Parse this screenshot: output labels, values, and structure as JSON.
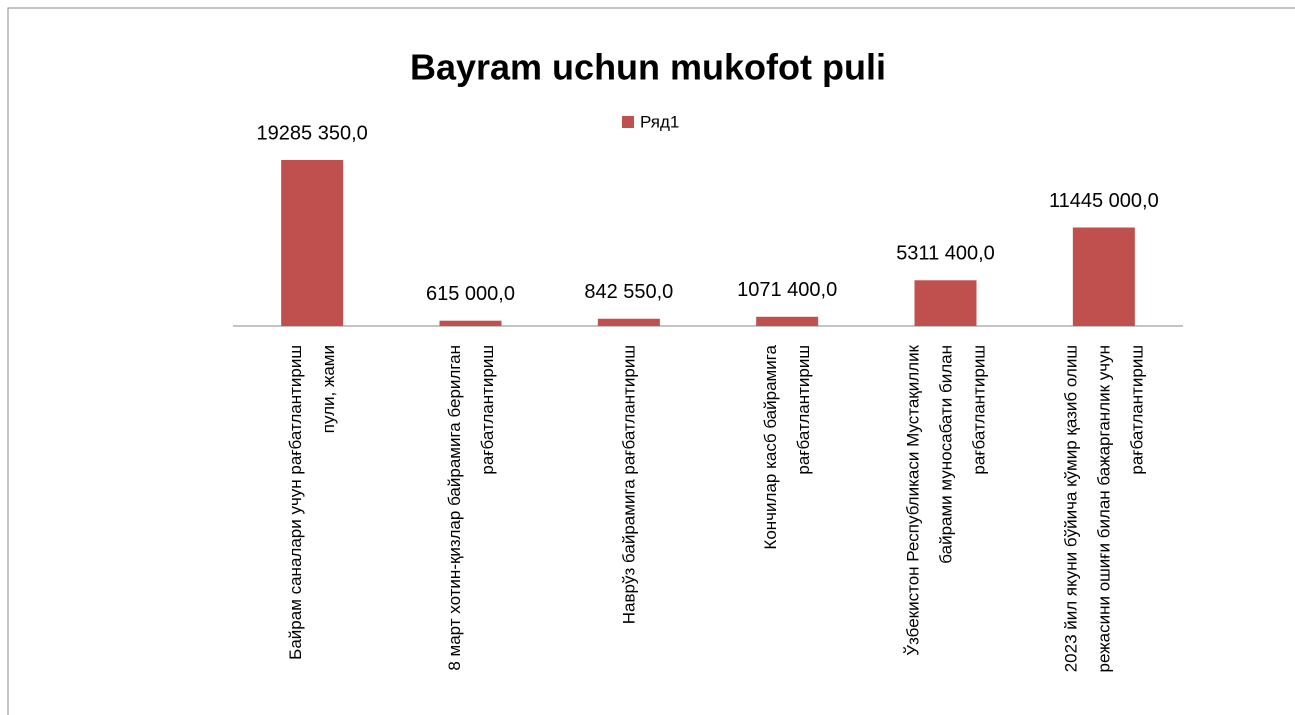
{
  "chart_data": {
    "type": "bar",
    "title": "Bayram uchun mukofot puli",
    "categories": [
      "Байрам саналари учун рағбатлантириш пули, жами",
      "8 март хотин-қизлар байрамига берилган рағбатлантириш",
      "Наврўз байрамига рағбатлантириш",
      "Кончилар касб байрамига рағбатлантириш",
      "Ўзбекистон Республикаси Мустақиллик байрами муносабати билан рағбатлантириш",
      "2023 йил якуни бўйича кўмир қазиб олиш режасини ошиғи билан бажарганлик учун рағбатлантириш"
    ],
    "series": [
      {
        "name": "Ряд1",
        "color": "#c0504d",
        "values": [
          19285350,
          615000,
          842550,
          1071400,
          5311400,
          11445000
        ],
        "value_labels": [
          "19285 350,0",
          "615 000,0",
          "842 550,0",
          "1071 400,0",
          "5311 400,0",
          "11445 000,0"
        ]
      }
    ]
  }
}
